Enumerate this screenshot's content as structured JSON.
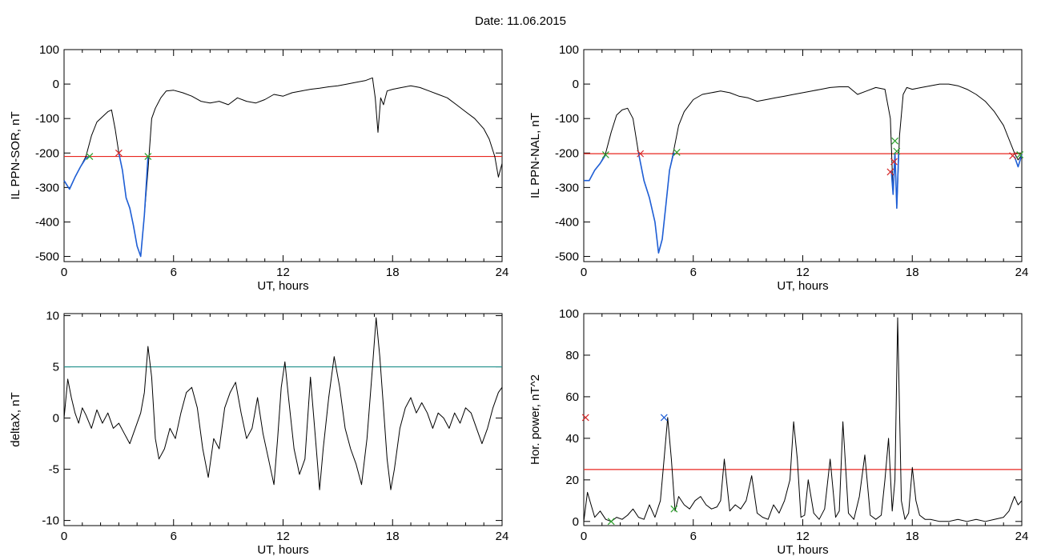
{
  "figure": {
    "date_label": "Date:  11.06.2015"
  },
  "chart_data": [
    {
      "id": "panel-il-ppn-sor",
      "type": "line",
      "xlabel": "UT, hours",
      "ylabel": "IL PPN-SOR, nT",
      "xlim": [
        0,
        24
      ],
      "ylim": [
        -515,
        100
      ],
      "x_ticks": [
        0,
        6,
        12,
        18,
        24
      ],
      "y_ticks": [
        -500,
        -400,
        -300,
        -200,
        -100,
        0,
        100
      ],
      "threshold": {
        "y": -210,
        "color": "#e8261f"
      },
      "series": [
        {
          "color": "#000000",
          "x": [
            0,
            0.3,
            0.6,
            0.9,
            1.2,
            1.5,
            1.8,
            2.1,
            2.4,
            2.6,
            2.8,
            3.0,
            3.2,
            3.4,
            3.6,
            3.8,
            4.0,
            4.2,
            4.4,
            4.6,
            4.8,
            5.0,
            5.3,
            5.6,
            6.0,
            6.5,
            7.0,
            7.5,
            8.0,
            8.5,
            9.0,
            9.5,
            10.0,
            10.5,
            11.0,
            11.5,
            12.0,
            12.5,
            13.0,
            13.5,
            14.0,
            14.5,
            15.0,
            15.5,
            16.0,
            16.5,
            16.9,
            17.05,
            17.2,
            17.35,
            17.5,
            17.7,
            18.0,
            18.5,
            19.0,
            19.5,
            20.0,
            20.5,
            21.0,
            21.5,
            22.0,
            22.5,
            23.0,
            23.3,
            23.6,
            23.8,
            24.0
          ],
          "y": [
            -280,
            -305,
            -270,
            -240,
            -210,
            -150,
            -110,
            -95,
            -80,
            -75,
            -130,
            -200,
            -250,
            -330,
            -360,
            -410,
            -470,
            -500,
            -380,
            -250,
            -100,
            -70,
            -40,
            -20,
            -18,
            -25,
            -35,
            -50,
            -55,
            -50,
            -60,
            -40,
            -50,
            -55,
            -45,
            -30,
            -35,
            -25,
            -20,
            -15,
            -12,
            -8,
            -5,
            0,
            5,
            10,
            18,
            -40,
            -140,
            -40,
            -60,
            -20,
            -15,
            -10,
            -5,
            -10,
            -20,
            -30,
            -40,
            -60,
            -80,
            -100,
            -130,
            -160,
            -210,
            -270,
            -230
          ]
        },
        {
          "color": "#1f5fd6",
          "x": [
            0,
            0.3,
            0.6,
            0.9,
            1.2,
            1.4
          ],
          "y": [
            -280,
            -305,
            -270,
            -240,
            -215,
            -210
          ]
        },
        {
          "color": "#1f5fd6",
          "x": [
            3.0,
            3.2,
            3.4,
            3.6,
            3.8,
            4.0,
            4.2,
            4.4,
            4.6
          ],
          "y": [
            -200,
            -250,
            -330,
            -360,
            -410,
            -470,
            -500,
            -380,
            -210
          ]
        }
      ],
      "markers": [
        {
          "x": 1.4,
          "y": -210,
          "color": "#2ca02c"
        },
        {
          "x": 3.0,
          "y": -200,
          "color": "#d62728"
        },
        {
          "x": 4.6,
          "y": -210,
          "color": "#2ca02c"
        }
      ]
    },
    {
      "id": "panel-il-ppn-nal",
      "type": "line",
      "xlabel": "UT, hours",
      "ylabel": "IL PPN-NAL, nT",
      "xlim": [
        0,
        24
      ],
      "ylim": [
        -515,
        100
      ],
      "x_ticks": [
        0,
        6,
        12,
        18,
        24
      ],
      "y_ticks": [
        -500,
        -400,
        -300,
        -200,
        -100,
        0,
        100
      ],
      "threshold": {
        "y": -202,
        "color": "#e8261f"
      },
      "series": [
        {
          "color": "#000000",
          "x": [
            0,
            0.3,
            0.6,
            0.9,
            1.2,
            1.5,
            1.8,
            2.1,
            2.4,
            2.7,
            3.0,
            3.3,
            3.6,
            3.9,
            4.1,
            4.3,
            4.5,
            4.7,
            4.9,
            5.2,
            5.5,
            6.0,
            6.5,
            7.0,
            7.5,
            8.0,
            8.5,
            9.0,
            9.5,
            10.0,
            10.5,
            11.0,
            11.5,
            12.0,
            12.5,
            13.0,
            13.5,
            14.0,
            14.5,
            15.0,
            15.5,
            16.0,
            16.5,
            16.8,
            16.95,
            17.05,
            17.15,
            17.3,
            17.5,
            17.7,
            18.0,
            18.5,
            19.0,
            19.5,
            20.0,
            20.5,
            21.0,
            21.5,
            22.0,
            22.5,
            23.0,
            23.3,
            23.6,
            23.8,
            24.0
          ],
          "y": [
            -280,
            -280,
            -250,
            -230,
            -200,
            -140,
            -90,
            -75,
            -70,
            -100,
            -200,
            -280,
            -330,
            -400,
            -490,
            -450,
            -350,
            -250,
            -200,
            -120,
            -80,
            -45,
            -30,
            -25,
            -20,
            -25,
            -35,
            -40,
            -50,
            -45,
            -40,
            -35,
            -30,
            -25,
            -20,
            -15,
            -10,
            -8,
            -8,
            -30,
            -20,
            -10,
            -15,
            -100,
            -320,
            -200,
            -360,
            -150,
            -30,
            -10,
            -15,
            -10,
            -5,
            0,
            0,
            -5,
            -15,
            -30,
            -50,
            -80,
            -120,
            -160,
            -200,
            -220,
            -205
          ]
        },
        {
          "color": "#1f5fd6",
          "x": [
            0,
            0.3,
            0.6,
            0.9,
            1.2
          ],
          "y": [
            -280,
            -280,
            -250,
            -230,
            -205
          ]
        },
        {
          "color": "#1f5fd6",
          "x": [
            3.0,
            3.3,
            3.6,
            3.9,
            4.1,
            4.3,
            4.5,
            4.7,
            4.9,
            5.0
          ],
          "y": [
            -200,
            -280,
            -330,
            -400,
            -490,
            -450,
            -350,
            -250,
            -205,
            -200
          ]
        },
        {
          "color": "#1f5fd6",
          "x": [
            16.85,
            16.95,
            17.05,
            17.15,
            17.25
          ],
          "y": [
            -250,
            -320,
            -200,
            -360,
            -200
          ]
        },
        {
          "color": "#1f5fd6",
          "x": [
            23.6,
            23.8,
            24.0
          ],
          "y": [
            -210,
            -240,
            -205
          ]
        }
      ],
      "markers": [
        {
          "x": 1.2,
          "y": -205,
          "color": "#2ca02c"
        },
        {
          "x": 3.1,
          "y": -202,
          "color": "#d62728"
        },
        {
          "x": 5.1,
          "y": -198,
          "color": "#2ca02c"
        },
        {
          "x": 16.8,
          "y": -255,
          "color": "#d62728"
        },
        {
          "x": 17.0,
          "y": -225,
          "color": "#d62728"
        },
        {
          "x": 17.05,
          "y": -165,
          "color": "#2ca02c"
        },
        {
          "x": 17.15,
          "y": -195,
          "color": "#2ca02c"
        },
        {
          "x": 23.5,
          "y": -208,
          "color": "#d62728"
        },
        {
          "x": 23.9,
          "y": -205,
          "color": "#2ca02c"
        }
      ]
    },
    {
      "id": "panel-deltax",
      "type": "line",
      "xlabel": "UT, hours",
      "ylabel": "deltaX, nT",
      "xlim": [
        0,
        24
      ],
      "ylim": [
        -10.5,
        10.2
      ],
      "x_ticks": [
        0,
        6,
        12,
        18,
        24
      ],
      "y_ticks": [
        -10,
        -5,
        0,
        5,
        10
      ],
      "threshold": {
        "y": 5,
        "color": "#1f8f8a"
      },
      "series": [
        {
          "color": "#000000",
          "x": [
            0,
            0.2,
            0.4,
            0.6,
            0.8,
            1.0,
            1.2,
            1.5,
            1.8,
            2.1,
            2.4,
            2.7,
            3.0,
            3.3,
            3.6,
            3.9,
            4.2,
            4.4,
            4.6,
            4.8,
            5.0,
            5.2,
            5.5,
            5.8,
            6.1,
            6.4,
            6.7,
            7.0,
            7.3,
            7.6,
            7.9,
            8.2,
            8.5,
            8.8,
            9.1,
            9.4,
            9.7,
            10.0,
            10.3,
            10.6,
            10.9,
            11.2,
            11.5,
            11.7,
            11.9,
            12.1,
            12.3,
            12.6,
            12.9,
            13.2,
            13.5,
            13.8,
            14.0,
            14.2,
            14.5,
            14.8,
            15.1,
            15.4,
            15.7,
            16.0,
            16.3,
            16.6,
            16.9,
            17.1,
            17.3,
            17.5,
            17.7,
            17.9,
            18.1,
            18.4,
            18.7,
            19.0,
            19.3,
            19.6,
            19.9,
            20.2,
            20.5,
            20.8,
            21.1,
            21.4,
            21.7,
            22.0,
            22.3,
            22.6,
            22.9,
            23.2,
            23.5,
            23.8,
            24.0
          ],
          "y": [
            0,
            3.8,
            2.0,
            0.5,
            -0.5,
            1.0,
            0.3,
            -1.0,
            0.8,
            -0.5,
            0.5,
            -1.0,
            -0.5,
            -1.5,
            -2.5,
            -1.0,
            0.5,
            2.5,
            7.0,
            4.0,
            -2.0,
            -4.0,
            -3.0,
            -1.0,
            -2.0,
            0.5,
            2.5,
            3.0,
            1.0,
            -3.0,
            -5.8,
            -2.0,
            -3.0,
            1.0,
            2.5,
            3.5,
            0.5,
            -2.0,
            -1.0,
            2.0,
            -1.5,
            -4.0,
            -6.5,
            -2.0,
            3.0,
            5.5,
            2.0,
            -3.0,
            -5.5,
            -4.0,
            4.0,
            -2.5,
            -7.0,
            -3.0,
            2.0,
            6.0,
            3.0,
            -1.0,
            -3.0,
            -4.5,
            -6.5,
            -2.0,
            5.0,
            9.8,
            6.0,
            1.0,
            -4.0,
            -7.0,
            -5.0,
            -1.0,
            1.0,
            2.0,
            0.5,
            1.5,
            0.5,
            -1.0,
            0.5,
            0,
            -1.0,
            0.5,
            -0.5,
            1.0,
            0.5,
            -1.0,
            -2.5,
            -1.0,
            1.0,
            2.5,
            3.0
          ]
        }
      ],
      "markers": []
    },
    {
      "id": "panel-hor-power",
      "type": "line",
      "xlabel": "UT, hours",
      "ylabel": "Hor. power, nT^2",
      "xlim": [
        0,
        24
      ],
      "ylim": [
        -2,
        100
      ],
      "x_ticks": [
        0,
        6,
        12,
        18,
        24
      ],
      "y_ticks": [
        0,
        20,
        40,
        60,
        80,
        100
      ],
      "threshold": {
        "y": 25,
        "color": "#e8261f"
      },
      "series": [
        {
          "color": "#000000",
          "x": [
            0,
            0.2,
            0.4,
            0.6,
            0.9,
            1.2,
            1.5,
            1.8,
            2.1,
            2.4,
            2.7,
            3.0,
            3.3,
            3.6,
            3.9,
            4.2,
            4.4,
            4.6,
            4.8,
            5.0,
            5.2,
            5.5,
            5.8,
            6.1,
            6.4,
            6.7,
            7.0,
            7.3,
            7.5,
            7.7,
            8.0,
            8.3,
            8.6,
            8.9,
            9.2,
            9.5,
            9.8,
            10.1,
            10.4,
            10.7,
            11.0,
            11.3,
            11.5,
            11.7,
            11.9,
            12.1,
            12.3,
            12.6,
            12.9,
            13.2,
            13.5,
            13.8,
            14.0,
            14.2,
            14.5,
            14.8,
            15.1,
            15.4,
            15.7,
            16.0,
            16.3,
            16.5,
            16.7,
            16.9,
            17.05,
            17.2,
            17.4,
            17.6,
            17.8,
            18.0,
            18.2,
            18.4,
            18.7,
            19.0,
            19.5,
            20.0,
            20.5,
            21.0,
            21.5,
            22.0,
            22.5,
            23.0,
            23.3,
            23.6,
            23.8,
            24.0
          ],
          "y": [
            0,
            14,
            8,
            2,
            5,
            1,
            0,
            2,
            1,
            3,
            6,
            2,
            1,
            8,
            2,
            10,
            30,
            50,
            30,
            5,
            12,
            8,
            6,
            10,
            12,
            8,
            6,
            7,
            10,
            30,
            5,
            8,
            6,
            10,
            22,
            4,
            2,
            1,
            8,
            4,
            10,
            20,
            48,
            30,
            2,
            3,
            20,
            4,
            1,
            6,
            30,
            2,
            5,
            48,
            4,
            1,
            12,
            32,
            3,
            1,
            3,
            20,
            40,
            5,
            20,
            98,
            10,
            1,
            4,
            26,
            10,
            3,
            1,
            1,
            0,
            0,
            1,
            0,
            1,
            0,
            1,
            2,
            5,
            12,
            8,
            10
          ]
        }
      ],
      "markers": [
        {
          "x": 4.4,
          "y": 50,
          "color": "#1f5fd6"
        },
        {
          "x": 0.1,
          "y": 50,
          "color": "#d62728"
        },
        {
          "x": 1.5,
          "y": 0,
          "color": "#2ca02c"
        },
        {
          "x": 4.95,
          "y": 6,
          "color": "#2ca02c"
        }
      ]
    }
  ]
}
